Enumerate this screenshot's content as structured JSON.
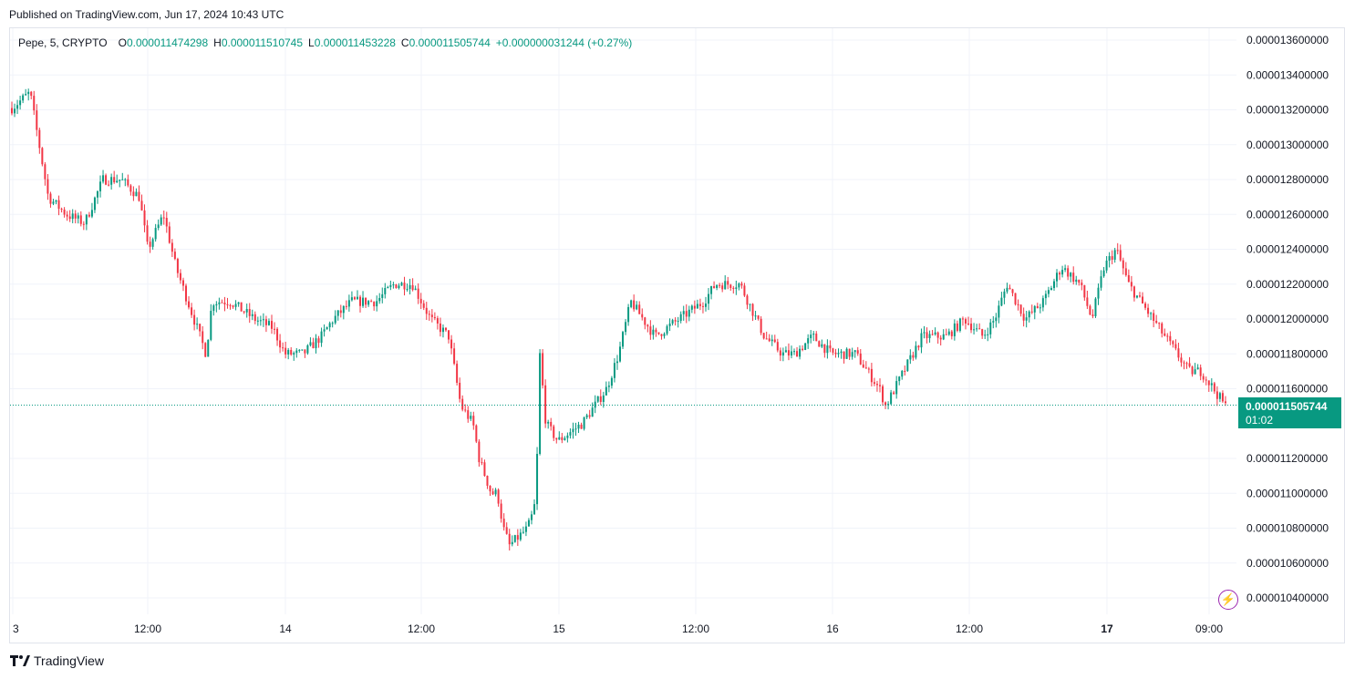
{
  "published": "Published on TradingView.com, Jun 17, 2024 10:43 UTC",
  "legend": {
    "symbol": "Pepe, 5, CRYPTO",
    "open_key": "O",
    "open": "0.000011474298",
    "high_key": "H",
    "high": "0.000011510745",
    "low_key": "L",
    "low": "0.000011453228",
    "close_key": "C",
    "close": "0.000011505744",
    "change": "+0.000000031244 (+0.27%)"
  },
  "price_tag": {
    "price": "0.000011505744",
    "countdown": "01:02"
  },
  "brand": "TradingView",
  "colors": {
    "up": "#089981",
    "down": "#f23645",
    "grid": "#f0f3fa",
    "accent": "#9c27b0"
  },
  "chart_data": {
    "type": "candlestick",
    "symbol": "Pepe",
    "interval": "5",
    "y_ticks": [
      "0.000013600000",
      "0.000013400000",
      "0.000013200000",
      "0.000013000000",
      "0.000012800000",
      "0.000012600000",
      "0.000012400000",
      "0.000012200000",
      "0.000012000000",
      "0.000011800000",
      "0.000011600000",
      "0.000011200000",
      "0.000011000000",
      "0.000010800000",
      "0.000010600000",
      "0.000010400000"
    ],
    "x_ticks": [
      {
        "label": "3",
        "bold": false
      },
      {
        "label": "12:00",
        "bold": false
      },
      {
        "label": "14",
        "bold": false
      },
      {
        "label": "12:00",
        "bold": false
      },
      {
        "label": "15",
        "bold": false
      },
      {
        "label": "12:00",
        "bold": false
      },
      {
        "label": "16",
        "bold": false
      },
      {
        "label": "12:00",
        "bold": false
      },
      {
        "label": "17",
        "bold": true
      },
      {
        "label": "09:00",
        "bold": false
      }
    ],
    "ylim": [
      1.03e-05,
      1.365e-05
    ],
    "last_price": 1.1505744e-05,
    "price_path": [
      [
        0,
        1.321e-05
      ],
      [
        0.015,
        1.33e-05
      ],
      [
        0.03,
        1.27e-05
      ],
      [
        0.045,
        1.26e-05
      ],
      [
        0.06,
        1.255e-05
      ],
      [
        0.075,
        1.28e-05
      ],
      [
        0.09,
        1.28e-05
      ],
      [
        0.105,
        1.27e-05
      ],
      [
        0.112,
        1.24e-05
      ],
      [
        0.125,
        1.26e-05
      ],
      [
        0.135,
        1.23e-05
      ],
      [
        0.15,
        1.2e-05
      ],
      [
        0.16,
        1.18e-05
      ],
      [
        0.165,
        1.21e-05
      ],
      [
        0.18,
        1.21e-05
      ],
      [
        0.2,
        1.2e-05
      ],
      [
        0.215,
        1.195e-05
      ],
      [
        0.225,
        1.18e-05
      ],
      [
        0.24,
        1.18e-05
      ],
      [
        0.255,
        1.19e-05
      ],
      [
        0.265,
        1.2e-05
      ],
      [
        0.28,
        1.21e-05
      ],
      [
        0.3,
        1.21e-05
      ],
      [
        0.315,
        1.22e-05
      ],
      [
        0.33,
        1.22e-05
      ],
      [
        0.345,
        1.2e-05
      ],
      [
        0.36,
        1.19e-05
      ],
      [
        0.37,
        1.15e-05
      ],
      [
        0.38,
        1.14e-05
      ],
      [
        0.385,
        1.12e-05
      ],
      [
        0.39,
        1.11e-05
      ],
      [
        0.395,
        1.1e-05
      ],
      [
        0.4,
        1.1e-05
      ],
      [
        0.405,
        1.08e-05
      ],
      [
        0.41,
        1.07e-05
      ],
      [
        0.425,
        1.08e-05
      ],
      [
        0.43,
        1.09e-05
      ],
      [
        0.432,
        1.1e-05
      ],
      [
        0.435,
        1.18e-05
      ],
      [
        0.44,
        1.14e-05
      ],
      [
        0.45,
        1.13e-05
      ],
      [
        0.47,
        1.14e-05
      ],
      [
        0.49,
        1.16e-05
      ],
      [
        0.5,
        1.18e-05
      ],
      [
        0.51,
        1.21e-05
      ],
      [
        0.53,
        1.19e-05
      ],
      [
        0.55,
        1.2e-05
      ],
      [
        0.57,
        1.21e-05
      ],
      [
        0.58,
        1.22e-05
      ],
      [
        0.6,
        1.22e-05
      ],
      [
        0.62,
        1.19e-05
      ],
      [
        0.635,
        1.18e-05
      ],
      [
        0.645,
        1.18e-05
      ],
      [
        0.66,
        1.19e-05
      ],
      [
        0.675,
        1.18e-05
      ],
      [
        0.695,
        1.18e-05
      ],
      [
        0.715,
        1.16e-05
      ],
      [
        0.72,
        1.15e-05
      ],
      [
        0.735,
        1.17e-05
      ],
      [
        0.75,
        1.19e-05
      ],
      [
        0.77,
        1.19e-05
      ],
      [
        0.785,
        1.2e-05
      ],
      [
        0.8,
        1.19e-05
      ],
      [
        0.81,
        1.2e-05
      ],
      [
        0.82,
        1.22e-05
      ],
      [
        0.835,
        1.2e-05
      ],
      [
        0.85,
        1.21e-05
      ],
      [
        0.865,
        1.23e-05
      ],
      [
        0.88,
        1.22e-05
      ],
      [
        0.89,
        1.2e-05
      ],
      [
        0.9,
        1.23e-05
      ],
      [
        0.91,
        1.24e-05
      ],
      [
        0.92,
        1.22e-05
      ],
      [
        0.93,
        1.21e-05
      ],
      [
        0.94,
        1.2e-05
      ],
      [
        0.95,
        1.19e-05
      ],
      [
        0.96,
        1.18e-05
      ],
      [
        0.97,
        1.17e-05
      ],
      [
        0.98,
        1.17e-05
      ],
      [
        0.99,
        1.16e-05
      ],
      [
        1.0,
        1.15e-05
      ]
    ]
  }
}
